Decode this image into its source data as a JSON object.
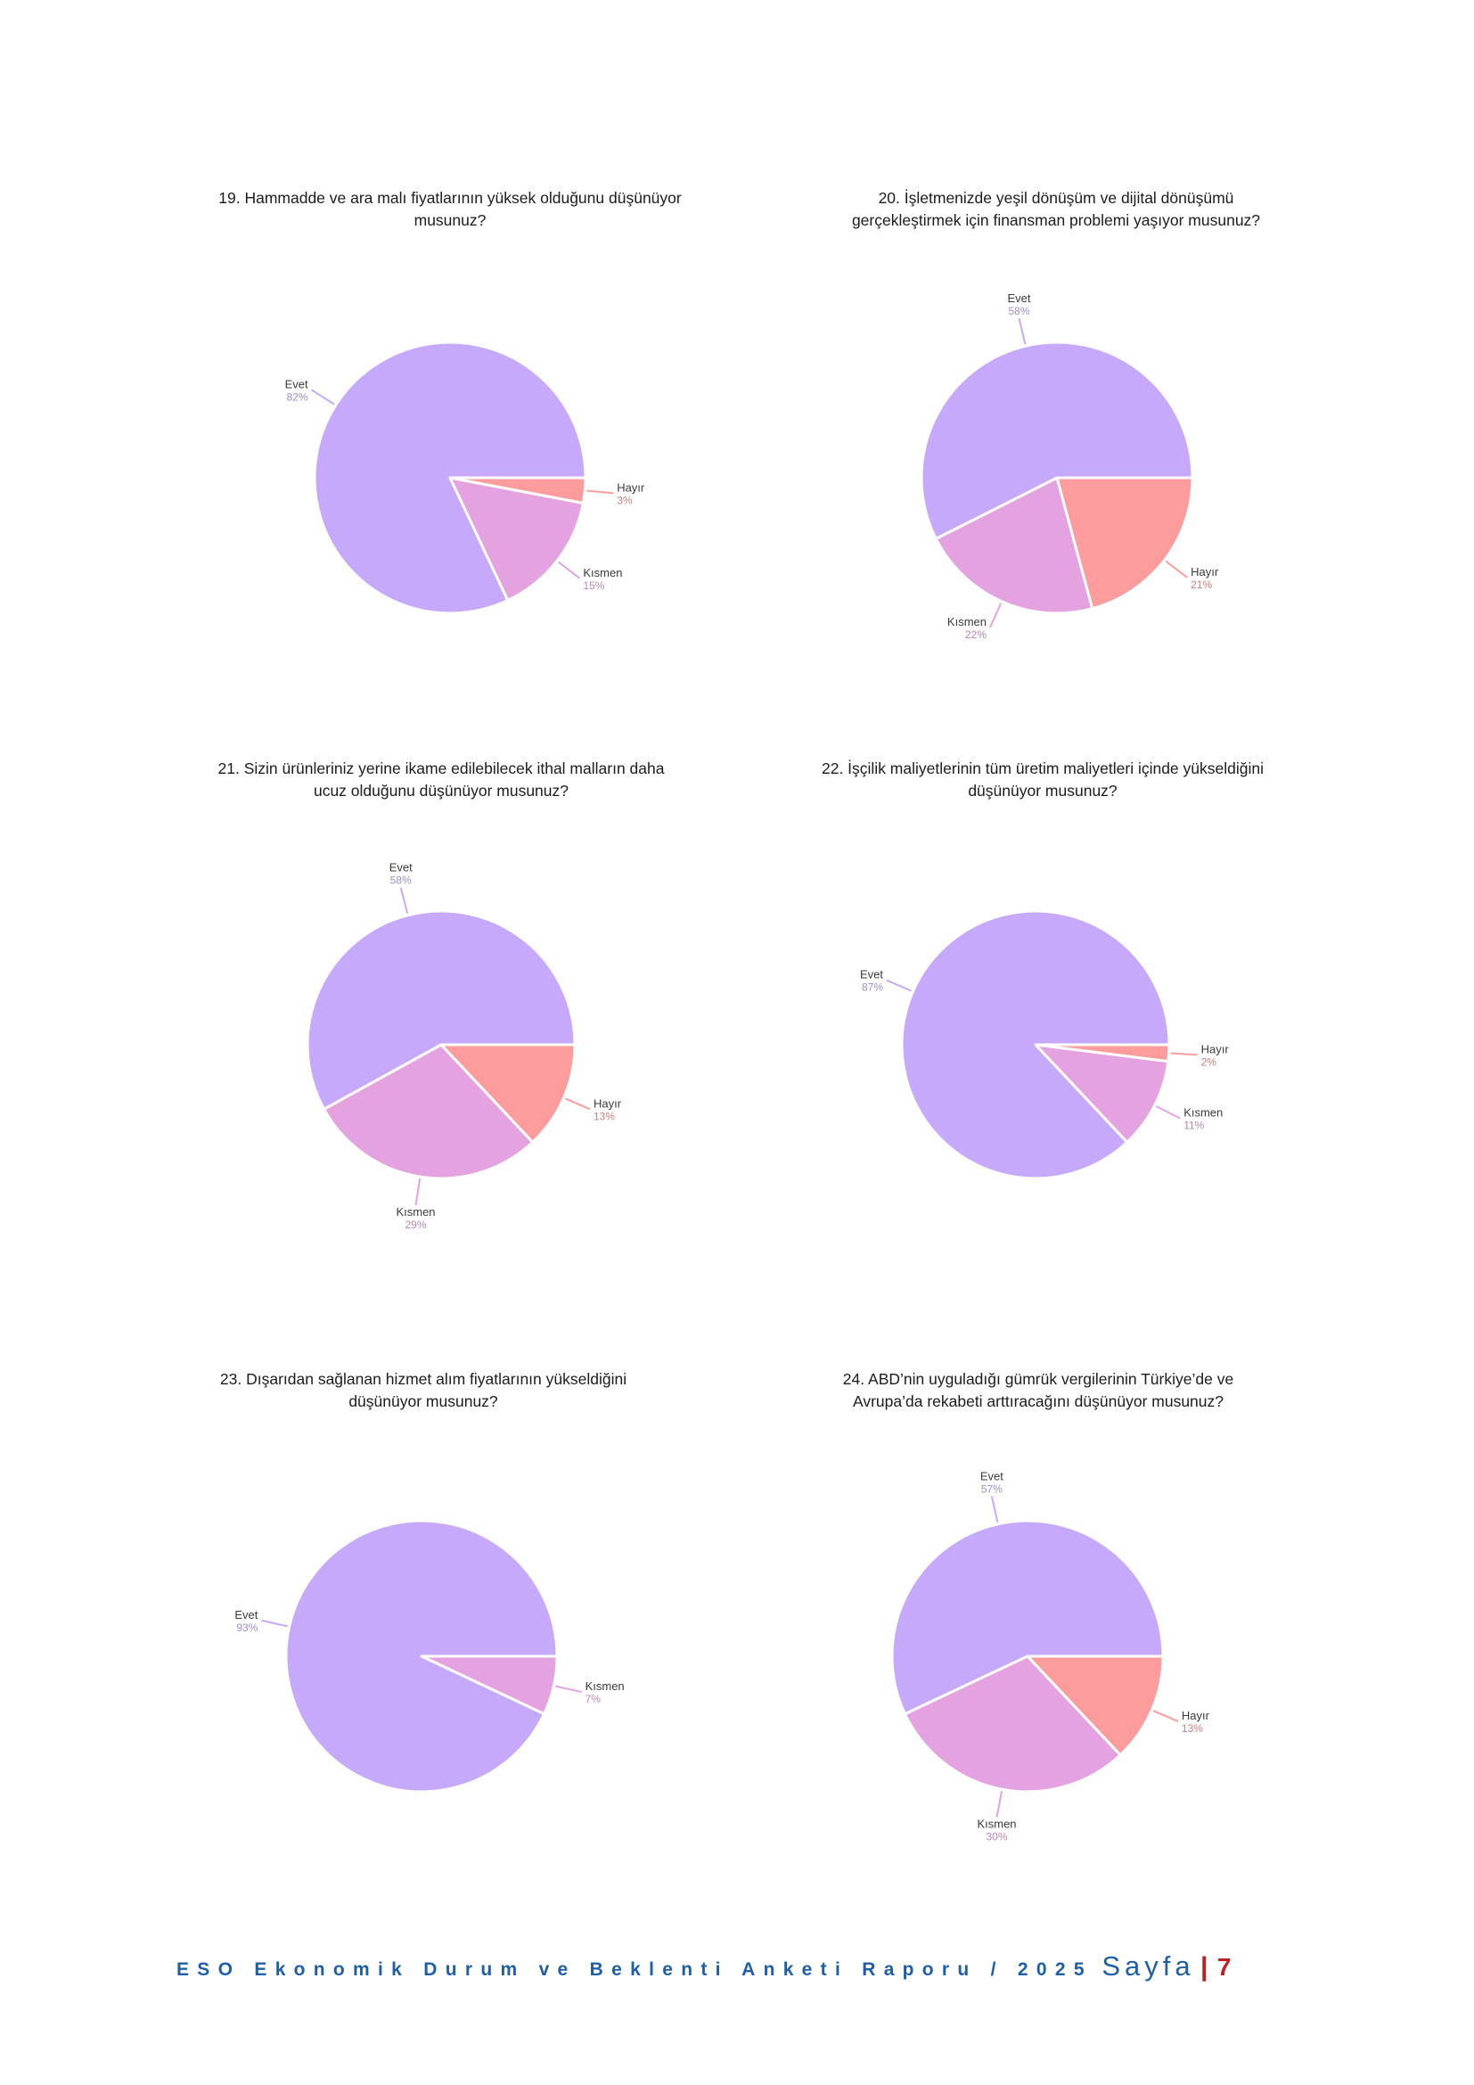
{
  "chart_data": [
    {
      "type": "pie",
      "title": "19. Hammadde ve ara malı fiyatlarının yüksek olduğunu düşünüyor\nmusunuz?",
      "slices": [
        {
          "label": "Hayır",
          "value": 3,
          "value_text": "3%",
          "color": "#fc9c9c"
        },
        {
          "label": "Kısmen",
          "value": 15,
          "value_text": "15%",
          "color": "#e4a2e0"
        },
        {
          "label": "Evet",
          "value": 82,
          "value_text": "82%",
          "color": "#c7a9fc"
        }
      ]
    },
    {
      "type": "pie",
      "title": "20. İşletmenizde yeşil dönüşüm ve dijital dönüşümü\ngerçekleştirmek için finansman problemi yaşıyor musunuz?",
      "slices": [
        {
          "label": "Hayır",
          "value": 21,
          "value_text": "21%",
          "color": "#fc9c9c"
        },
        {
          "label": "Kısmen",
          "value": 22,
          "value_text": "22%",
          "color": "#e4a2e0"
        },
        {
          "label": "Evet",
          "value": 58,
          "value_text": "58%",
          "color": "#c7a9fc"
        }
      ]
    },
    {
      "type": "pie",
      "title": "21. Sizin ürünleriniz yerine ikame edilebilecek ithal malların daha\nucuz olduğunu düşünüyor musunuz?",
      "slices": [
        {
          "label": "Hayır",
          "value": 13,
          "value_text": "13%",
          "color": "#fc9c9c"
        },
        {
          "label": "Kısmen",
          "value": 29,
          "value_text": "29%",
          "color": "#e4a2e0"
        },
        {
          "label": "Evet",
          "value": 58,
          "value_text": "58%",
          "color": "#c7a9fc"
        }
      ]
    },
    {
      "type": "pie",
      "title": "22. İşçilik maliyetlerinin tüm üretim maliyetleri içinde yükseldiğini\ndüşünüyor musunuz?",
      "slices": [
        {
          "label": "Hayır",
          "value": 2,
          "value_text": "2%",
          "color": "#fc9c9c"
        },
        {
          "label": "Kısmen",
          "value": 11,
          "value_text": "11%",
          "color": "#e4a2e0"
        },
        {
          "label": "Evet",
          "value": 87,
          "value_text": "87%",
          "color": "#c7a9fc"
        }
      ]
    },
    {
      "type": "pie",
      "title": "23. Dışarıdan sağlanan hizmet alım fiyatlarının yükseldiğini\ndüşünüyor musunuz?",
      "slices": [
        {
          "label": "Kısmen",
          "value": 7,
          "value_text": "7%",
          "color": "#e4a2e0"
        },
        {
          "label": "Evet",
          "value": 93,
          "value_text": "93%",
          "color": "#c7a9fc"
        }
      ]
    },
    {
      "type": "pie",
      "title": "24. ABD’nin uyguladığı gümrük vergilerinin Türkiye’de ve\nAvrupa’da rekabeti arttıracağını düşünüyor musunuz?",
      "slices": [
        {
          "label": "Hayır",
          "value": 13,
          "value_text": "13%",
          "color": "#fc9c9c"
        },
        {
          "label": "Kısmen",
          "value": 30,
          "value_text": "30%",
          "color": "#e4a2e0"
        },
        {
          "label": "Evet",
          "value": 57,
          "value_text": "57%",
          "color": "#c7a9fc"
        }
      ]
    }
  ],
  "footer": {
    "report_title": "ESO Ekonomik Durum ve Beklenti Anketi Raporu / 2025",
    "page_word": "Sayfa",
    "separator": "|",
    "page_number": "7"
  }
}
